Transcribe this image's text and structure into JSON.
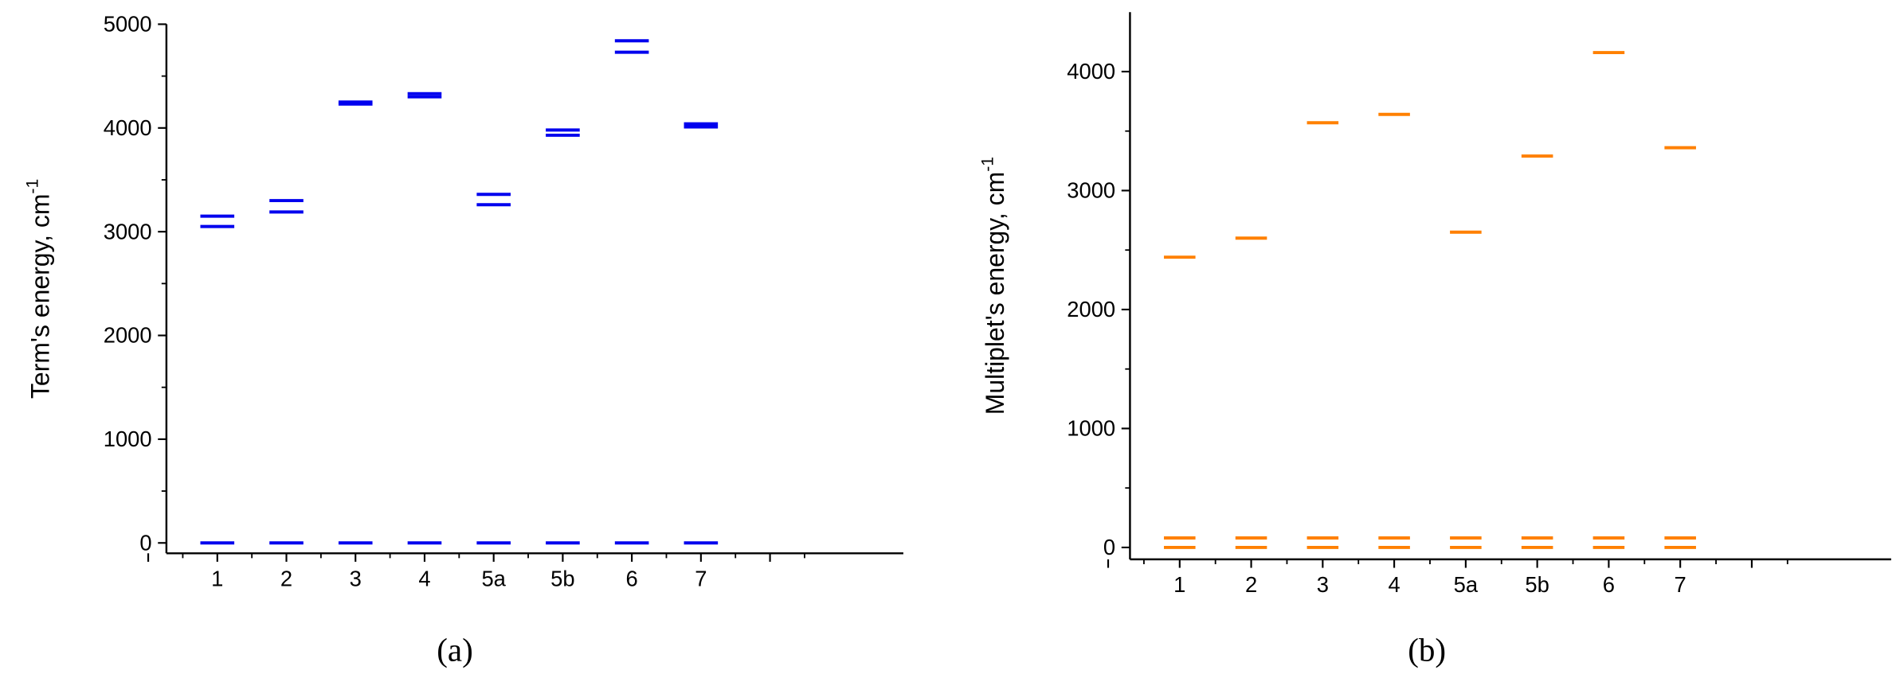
{
  "chart_data": [
    {
      "type": "level",
      "caption": "(a)",
      "y_label": "Term's energy, cm",
      "y_label_sup": "-1",
      "categories": [
        "1",
        "2",
        "3",
        "4",
        "5a",
        "5b",
        "6",
        "7"
      ],
      "series": [
        {
          "color": "#0000ee",
          "values": [
            0,
            0,
            0,
            0,
            0,
            0,
            0,
            0
          ]
        },
        {
          "color": "#0000ee",
          "values": [
            3050,
            3190,
            4230,
            4300,
            3260,
            3930,
            4730,
            4010
          ]
        },
        {
          "color": "#0000ee",
          "values": [
            3150,
            3300,
            4250,
            4330,
            3360,
            3980,
            4840,
            4040
          ]
        }
      ],
      "ylim": [
        -100,
        5000
      ],
      "yticks": [
        0,
        1000,
        2000,
        3000,
        4000,
        5000
      ]
    },
    {
      "type": "level",
      "caption": "(b)",
      "y_label": "Multiplet's energy, cm",
      "y_label_sup": "-1",
      "categories": [
        "1",
        "2",
        "3",
        "4",
        "5a",
        "5b",
        "6",
        "7"
      ],
      "series": [
        {
          "color": "#ff8000",
          "values": [
            0,
            0,
            0,
            0,
            0,
            0,
            0,
            0
          ]
        },
        {
          "color": "#ff8000",
          "values": [
            80,
            80,
            80,
            80,
            80,
            80,
            80,
            80
          ]
        },
        {
          "color": "#ff8000",
          "values": [
            2440,
            2600,
            3570,
            3640,
            2650,
            3290,
            4160,
            3360
          ]
        }
      ],
      "ylim": [
        -100,
        4500
      ],
      "yticks": [
        0,
        1000,
        2000,
        3000,
        4000
      ]
    }
  ]
}
